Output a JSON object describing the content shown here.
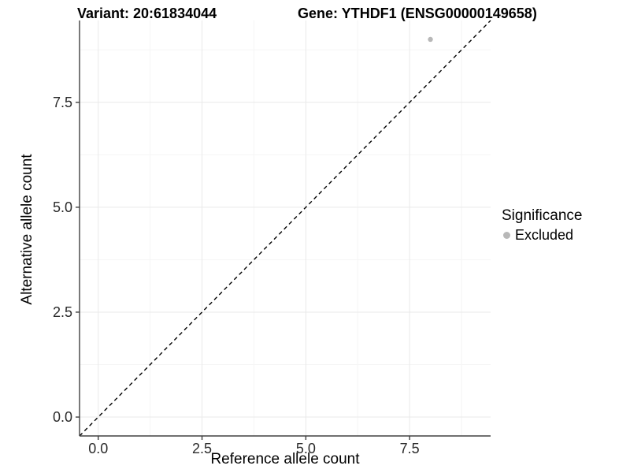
{
  "titles": {
    "variant": "Variant: 20:61834044",
    "gene": "Gene: YTHDF1 (ENSG00000149658)"
  },
  "axes": {
    "x_title": "Reference allele count",
    "y_title": "Alternative allele count"
  },
  "legend": {
    "title": "Significance",
    "items": [
      {
        "label": "Excluded",
        "color": "#b8b8b8"
      }
    ]
  },
  "style": {
    "background": "#ffffff",
    "major_grid_color": "#e9e9e9",
    "minor_grid_color": "#f5f5f5",
    "axis_line_color": "#404040",
    "tick_color": "#404040",
    "tick_label_color": "#2b2b2b",
    "reference_line_color": "#000000",
    "point_color": "#b8b8b8"
  },
  "chart_data": {
    "type": "scatter",
    "title": "Variant: 20:61834044  |  Gene: YTHDF1 (ENSG00000149658)",
    "xlabel": "Reference allele count",
    "ylabel": "Alternative allele count",
    "xlim": [
      -0.45,
      9.45
    ],
    "ylim": [
      -0.45,
      9.45
    ],
    "x_ticks": [
      0.0,
      2.5,
      5.0,
      7.5
    ],
    "y_ticks": [
      0.0,
      2.5,
      5.0,
      7.5
    ],
    "x_tick_labels": [
      "0.0",
      "2.5",
      "5.0",
      "7.5"
    ],
    "y_tick_labels": [
      "0.0",
      "2.5",
      "5.0",
      "7.5"
    ],
    "x_minor_ticks": [
      1.25,
      3.75,
      6.25,
      8.75
    ],
    "y_minor_ticks": [
      1.25,
      3.75,
      6.25,
      8.75
    ],
    "grid": true,
    "legend_position": "right",
    "series": [
      {
        "name": "Excluded",
        "color": "#b8b8b8",
        "points": [
          {
            "x": 8,
            "y": 9
          }
        ]
      }
    ],
    "reference_line": {
      "kind": "identity",
      "from": [
        -0.45,
        -0.45
      ],
      "to": [
        9.45,
        9.45
      ],
      "style": "dashed",
      "color": "#000000"
    }
  }
}
